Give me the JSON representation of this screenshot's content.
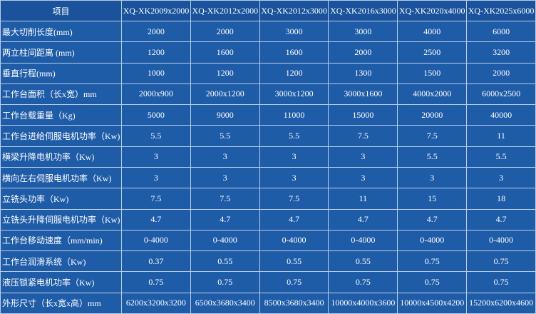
{
  "table": {
    "header": [
      "项目",
      "XQ-XK2009x2000",
      "XQ-XK2012x2000",
      "XQ-XK2012x3000",
      "XQ-XK2016x3000",
      "XQ-XK2020x4000",
      "XQ-XK2025x6000"
    ],
    "rows": [
      [
        "最大切削长度(mm)",
        "2000",
        "2000",
        "3000",
        "3000",
        "4000",
        "6000"
      ],
      [
        "两立柱间距离 (mm)",
        "1200",
        "1600",
        "1600",
        "2000",
        "2500",
        "3200"
      ],
      [
        "垂直行程(mm)",
        "1000",
        "1200",
        "1200",
        "1300",
        "1500",
        "2000"
      ],
      [
        "工作台面积（长x宽）mm",
        "2000x900",
        "2000x1200",
        "3000x1200",
        "3000x1600",
        "4000x2000",
        "6000x2500"
      ],
      [
        "工作台载重量（Kg)",
        "5000",
        "9000",
        "11000",
        "15000",
        "20000",
        "40000"
      ],
      [
        "工作台进给伺服电机功率（Kw)",
        "5.5",
        "5.5",
        "5.5",
        "7.5",
        "7.5",
        "11"
      ],
      [
        "横梁升降电机功率（Kw)",
        "3",
        "3",
        "3",
        "3",
        "5.5",
        "5.5"
      ],
      [
        "横向左右伺服电机功率（Kw)",
        "3",
        "3",
        "3",
        "3",
        "3",
        "3"
      ],
      [
        "立铣头功率（Kw)",
        "7.5",
        "7.5",
        "7.5",
        "11",
        "15",
        "18"
      ],
      [
        "立铣头升降伺服电机功率（Kw)",
        "4.7",
        "4.7",
        "4.7",
        "4.7",
        "4.7",
        "4.7"
      ],
      [
        "工作台移动速度（mm/min)",
        "0-4000",
        "0-4000",
        "0-4000",
        "0-4000",
        "0-4000",
        "0-4000"
      ],
      [
        "工作台润滑系统（Kw)",
        "0.37",
        "0.55",
        "0.55",
        "0.55",
        "0.75",
        "0.75"
      ],
      [
        "液压锁紧电机功率（Kw)",
        "0.75",
        "0.75",
        "0.75",
        "0.75",
        "0.75",
        "0.75"
      ],
      [
        "外形尺寸（长x宽x高）mm",
        "6200x3200x3200",
        "6500x3680x3400",
        "8500x3680x3400",
        "10000x4000x3600",
        "10000x4500x4200",
        "15200x6200x4600"
      ]
    ]
  }
}
